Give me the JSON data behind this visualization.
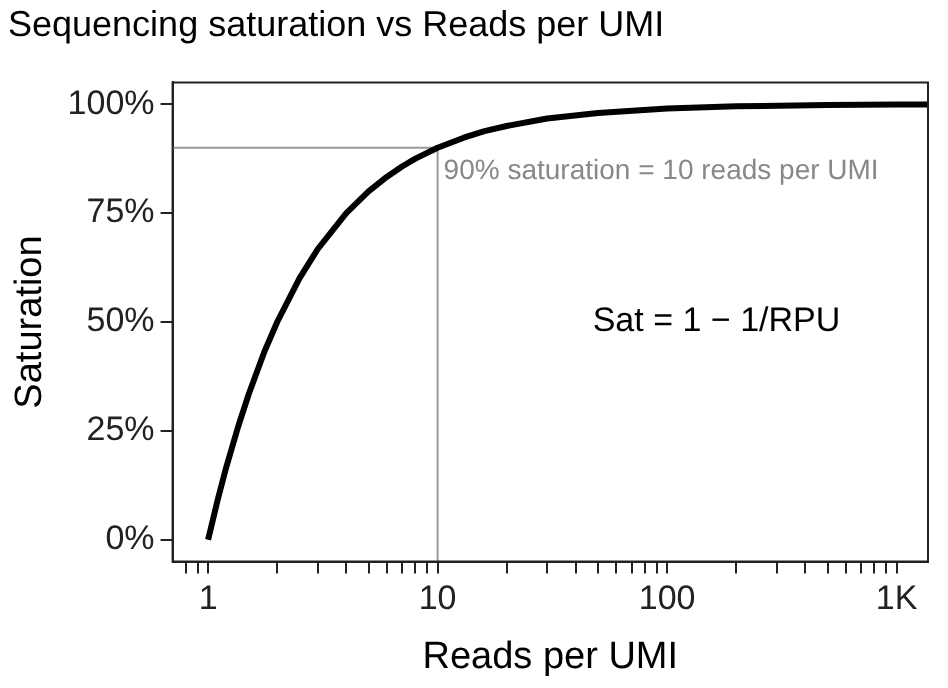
{
  "chart_data": {
    "type": "line",
    "title": "Sequencing saturation vs Reads per UMI",
    "xlabel": "Reads per UMI",
    "ylabel": "Saturation",
    "x": [
      1,
      1.1,
      1.2,
      1.35,
      1.5,
      1.75,
      2,
      2.5,
      3,
      4,
      5,
      6,
      7,
      8,
      10,
      13,
      16,
      20,
      30,
      50,
      100,
      200,
      500,
      1000,
      1370
    ],
    "series": [
      {
        "color": "#000000",
        "values": [
          0,
          0.091,
          0.167,
          0.259,
          0.333,
          0.429,
          0.5,
          0.6,
          0.667,
          0.75,
          0.8,
          0.833,
          0.857,
          0.875,
          0.9,
          0.923,
          0.938,
          0.95,
          0.967,
          0.98,
          0.99,
          0.995,
          0.998,
          0.999,
          0.999
        ]
      }
    ],
    "log": "x",
    "xlim": [
      0.72,
      1370
    ],
    "ylim": [
      -0.05,
      1.05
    ],
    "xticks": [
      {
        "value": 0.8,
        "label": null
      },
      {
        "value": 0.9,
        "label": null
      },
      1,
      {
        "value": 2,
        "label": null
      },
      {
        "value": 3,
        "label": null
      },
      {
        "value": 4,
        "label": null
      },
      {
        "value": 5,
        "label": null
      },
      {
        "value": 6,
        "label": null
      },
      {
        "value": 7,
        "label": null
      },
      {
        "value": 8,
        "label": null
      },
      {
        "value": 9,
        "label": null
      },
      10,
      {
        "value": 20,
        "label": null
      },
      {
        "value": 30,
        "label": null
      },
      {
        "value": 40,
        "label": null
      },
      {
        "value": 50,
        "label": null
      },
      {
        "value": 60,
        "label": null
      },
      {
        "value": 70,
        "label": null
      },
      {
        "value": 80,
        "label": null
      },
      {
        "value": 90,
        "label": null
      },
      100,
      {
        "value": 200,
        "label": null
      },
      {
        "value": 300,
        "label": null
      },
      {
        "value": 400,
        "label": null
      },
      {
        "value": 500,
        "label": null
      },
      {
        "value": 600,
        "label": null
      },
      {
        "value": 700,
        "label": null
      },
      {
        "value": 800,
        "label": null
      },
      {
        "value": 900,
        "label": null
      },
      {
        "value": 1000,
        "label": "1K"
      }
    ],
    "yticks": [
      {
        "value": 0,
        "label": "0%"
      },
      {
        "value": 0.25,
        "label": "25%"
      },
      {
        "value": 0.5,
        "label": "50%"
      },
      {
        "value": 0.75,
        "label": "75%"
      },
      {
        "value": 1,
        "label": "100%"
      }
    ],
    "ref_lines": [
      {
        "axis": "y",
        "value": 0.9,
        "color": "#999999"
      },
      {
        "axis": "x",
        "value": 10,
        "color": "#999999"
      }
    ],
    "annotations": [
      {
        "text": "90% saturation = 10 reads per UMI",
        "x": 10,
        "y": 0.9
      },
      "Sat = 1 − 1/RPU"
    ],
    "grid": false,
    "legend": false,
    "marker": "none",
    "line_style": "solid"
  }
}
